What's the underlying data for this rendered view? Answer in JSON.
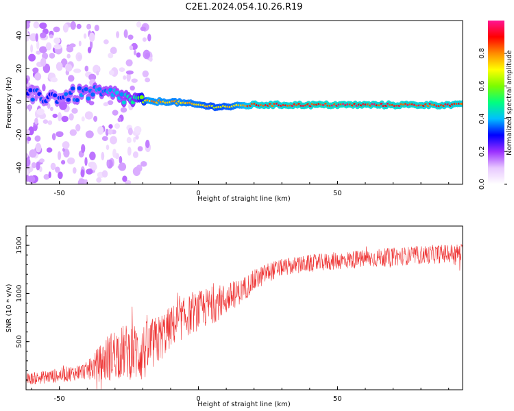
{
  "title": "C2E1.2024.054.10.26.R19",
  "chart_data": [
    {
      "type": "heatmap",
      "xlabel": "Height of straight line (km)",
      "ylabel": "Frequency (Hz)",
      "xlim": [
        -62,
        95
      ],
      "ylim": [
        -50,
        49
      ],
      "x_ticks": [
        -50,
        0,
        50
      ],
      "y_ticks": [
        40,
        20,
        0,
        -20,
        -40
      ],
      "colorbar": {
        "label": "Normalized spectral amplitude",
        "range": [
          0,
          1
        ],
        "ticks": [
          0.0,
          0.2,
          0.4,
          0.6,
          0.8
        ],
        "colors": [
          "#ffffff",
          "#e8c8ff",
          "#9b30ff",
          "#0000ff",
          "#00bfff",
          "#00ff7f",
          "#7cfc00",
          "#ffff00",
          "#ff8c00",
          "#ff0000",
          "#ff1493"
        ]
      },
      "ridge": [
        {
          "x": -62,
          "freq": 3,
          "amp": 0.35
        },
        {
          "x": -50,
          "freq": 3,
          "amp": 0.35
        },
        {
          "x": -40,
          "freq": 5,
          "amp": 0.4
        },
        {
          "x": -30,
          "freq": 4,
          "amp": 0.42
        },
        {
          "x": -22,
          "freq": 0,
          "amp": 0.5
        },
        {
          "x": -18,
          "freq": 0,
          "amp": 0.85
        },
        {
          "x": -10,
          "freq": 0,
          "amp": 0.82
        },
        {
          "x": 0,
          "freq": -2,
          "amp": 0.8
        },
        {
          "x": 5,
          "freq": -3,
          "amp": 0.75
        },
        {
          "x": 12,
          "freq": -3,
          "amp": 0.78
        },
        {
          "x": 20,
          "freq": -2,
          "amp": 0.95
        },
        {
          "x": 50,
          "freq": -2,
          "amp": 0.98
        },
        {
          "x": 94,
          "freq": -2,
          "amp": 0.95
        }
      ]
    },
    {
      "type": "line",
      "xlabel": "Height of straight line (km)",
      "ylabel": "SNR (10 * v/v)",
      "xlim": [
        -62,
        95
      ],
      "ylim": [
        0,
        1700
      ],
      "x_ticks": [
        -50,
        0,
        50
      ],
      "y_ticks": [
        500,
        1000,
        1500
      ],
      "series_color": "#ee3333",
      "trend": [
        {
          "x": -62,
          "y": 110
        },
        {
          "x": -50,
          "y": 150
        },
        {
          "x": -40,
          "y": 200
        },
        {
          "x": -35,
          "y": 280
        },
        {
          "x": -30,
          "y": 380
        },
        {
          "x": -25,
          "y": 400
        },
        {
          "x": -20,
          "y": 380
        },
        {
          "x": -15,
          "y": 500
        },
        {
          "x": -10,
          "y": 650
        },
        {
          "x": -5,
          "y": 750
        },
        {
          "x": 0,
          "y": 820
        },
        {
          "x": 5,
          "y": 880
        },
        {
          "x": 10,
          "y": 940
        },
        {
          "x": 15,
          "y": 1020
        },
        {
          "x": 20,
          "y": 1130
        },
        {
          "x": 25,
          "y": 1220
        },
        {
          "x": 30,
          "y": 1270
        },
        {
          "x": 40,
          "y": 1310
        },
        {
          "x": 50,
          "y": 1340
        },
        {
          "x": 60,
          "y": 1360
        },
        {
          "x": 70,
          "y": 1380
        },
        {
          "x": 80,
          "y": 1400
        },
        {
          "x": 94,
          "y": 1420
        }
      ],
      "noise": [
        {
          "x": -62,
          "amp": 60
        },
        {
          "x": -40,
          "amp": 90
        },
        {
          "x": -33,
          "amp": 250
        },
        {
          "x": -20,
          "amp": 320
        },
        {
          "x": -10,
          "amp": 220
        },
        {
          "x": 5,
          "amp": 200
        },
        {
          "x": 15,
          "amp": 130
        },
        {
          "x": 30,
          "amp": 90
        },
        {
          "x": 94,
          "amp": 100
        }
      ]
    }
  ]
}
